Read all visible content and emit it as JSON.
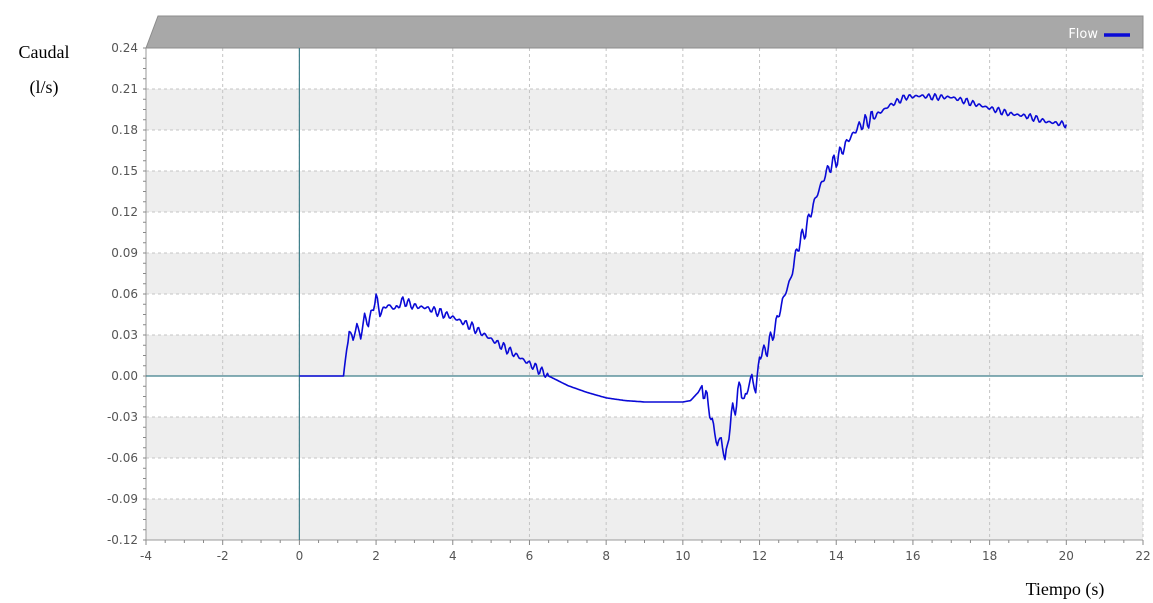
{
  "chart_data": {
    "type": "line",
    "title": "",
    "xlabel": "Tiempo (s)",
    "ylabel_line1": "Caudal",
    "ylabel_line2": "(l/s)",
    "xlim": [
      -4,
      22
    ],
    "ylim": [
      -0.12,
      0.24
    ],
    "xticks": [
      -4,
      -2,
      0,
      2,
      4,
      6,
      8,
      10,
      12,
      14,
      16,
      18,
      20,
      22
    ],
    "yticks": [
      -0.12,
      -0.09,
      -0.06,
      -0.03,
      0.0,
      0.03,
      0.06,
      0.09,
      0.12,
      0.15,
      0.18,
      0.21,
      0.24
    ],
    "xtick_labels": [
      "-4",
      "-2",
      "0",
      "2",
      "4",
      "6",
      "8",
      "10",
      "12",
      "14",
      "16",
      "18",
      "20",
      "22"
    ],
    "ytick_labels": [
      "-0.12",
      "-0.09",
      "-0.06",
      "-0.03",
      "0.00",
      "0.03",
      "0.06",
      "0.09",
      "0.12",
      "0.15",
      "0.18",
      "0.21",
      "0.24"
    ],
    "grid": true,
    "legend_position": "top-right",
    "colors": {
      "series": "#0a0ad6",
      "band": "#eeeeee",
      "header": "#a8a8a8",
      "grid": "#c4c4c4",
      "zero_axis": "#3f7f8a"
    },
    "series": [
      {
        "name": "Flow",
        "x": [
          0,
          0.5,
          1.0,
          1.15,
          1.2,
          1.3,
          1.4,
          1.5,
          1.6,
          1.7,
          1.8,
          1.9,
          2.0,
          2.1,
          2.3,
          2.5,
          2.7,
          3.0,
          3.3,
          3.6,
          4.0,
          4.5,
          5.0,
          5.5,
          6.0,
          6.5,
          7.0,
          7.5,
          8.0,
          8.5,
          9.0,
          9.5,
          10.0,
          10.2,
          10.4,
          10.5,
          10.6,
          10.7,
          10.8,
          10.9,
          11.0,
          11.1,
          11.2,
          11.3,
          11.4,
          11.5,
          11.6,
          11.7,
          11.8,
          11.9,
          12.0,
          12.2,
          12.4,
          12.6,
          12.8,
          13.0,
          13.2,
          13.4,
          13.6,
          13.8,
          14.0,
          14.3,
          14.6,
          15.0,
          15.4,
          15.8,
          16.2,
          16.6,
          17.0,
          17.5,
          18.0,
          18.5,
          19.0,
          19.5,
          20.0
        ],
        "values": [
          0.0,
          0.0,
          0.0,
          0.0,
          0.012,
          0.034,
          0.026,
          0.038,
          0.028,
          0.044,
          0.038,
          0.048,
          0.058,
          0.046,
          0.052,
          0.049,
          0.055,
          0.051,
          0.05,
          0.047,
          0.043,
          0.036,
          0.027,
          0.018,
          0.009,
          0.0,
          -0.007,
          -0.012,
          -0.016,
          -0.018,
          -0.019,
          -0.019,
          -0.019,
          -0.018,
          -0.012,
          -0.007,
          -0.015,
          -0.025,
          -0.038,
          -0.05,
          -0.045,
          -0.063,
          -0.042,
          -0.025,
          -0.02,
          -0.005,
          -0.02,
          -0.008,
          0.0,
          -0.012,
          0.015,
          0.02,
          0.035,
          0.055,
          0.07,
          0.095,
          0.107,
          0.125,
          0.14,
          0.152,
          0.158,
          0.172,
          0.183,
          0.19,
          0.198,
          0.204,
          0.205,
          0.204,
          0.204,
          0.2,
          0.196,
          0.192,
          0.19,
          0.186,
          0.184
        ]
      }
    ]
  }
}
